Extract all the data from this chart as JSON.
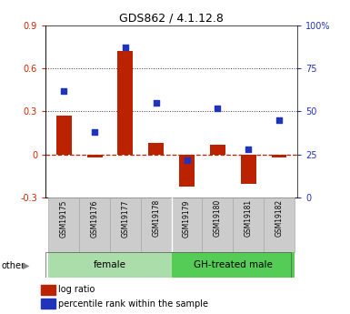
{
  "title": "GDS862 / 4.1.12.8",
  "samples": [
    "GSM19175",
    "GSM19176",
    "GSM19177",
    "GSM19178",
    "GSM19179",
    "GSM19180",
    "GSM19181",
    "GSM19182"
  ],
  "log_ratio": [
    0.27,
    -0.02,
    0.72,
    0.08,
    -0.22,
    0.07,
    -0.2,
    -0.02
  ],
  "percentile": [
    62,
    38,
    87,
    55,
    22,
    52,
    28,
    45
  ],
  "ylim_left": [
    -0.3,
    0.9
  ],
  "ylim_right": [
    0,
    100
  ],
  "yticks_left": [
    -0.3,
    0.0,
    0.3,
    0.6,
    0.9
  ],
  "yticks_right": [
    0,
    25,
    50,
    75,
    100
  ],
  "ytick_labels_left": [
    "-0.3",
    "0",
    "0.3",
    "0.6",
    "0.9"
  ],
  "ytick_labels_right": [
    "0",
    "25",
    "50",
    "75",
    "100%"
  ],
  "hlines": [
    0.3,
    0.6
  ],
  "groups": [
    {
      "label": "female",
      "start": 0,
      "end": 4,
      "color": "#aaddaa"
    },
    {
      "label": "GH-treated male",
      "start": 4,
      "end": 8,
      "color": "#55cc55"
    }
  ],
  "bar_color": "#bb2200",
  "square_color": "#2233bb",
  "zero_line_color": "#bb2200",
  "bg_color": "#ffffff",
  "plot_bg": "#ffffff",
  "dotted_color": "#333333",
  "tick_color_left": "#cc2200",
  "tick_color_right": "#2233bb",
  "legend_items": [
    "log ratio",
    "percentile rank within the sample"
  ],
  "other_label": "other",
  "bar_width": 0.5,
  "square_size": 25,
  "figsize": [
    3.85,
    3.45
  ],
  "dpi": 100
}
